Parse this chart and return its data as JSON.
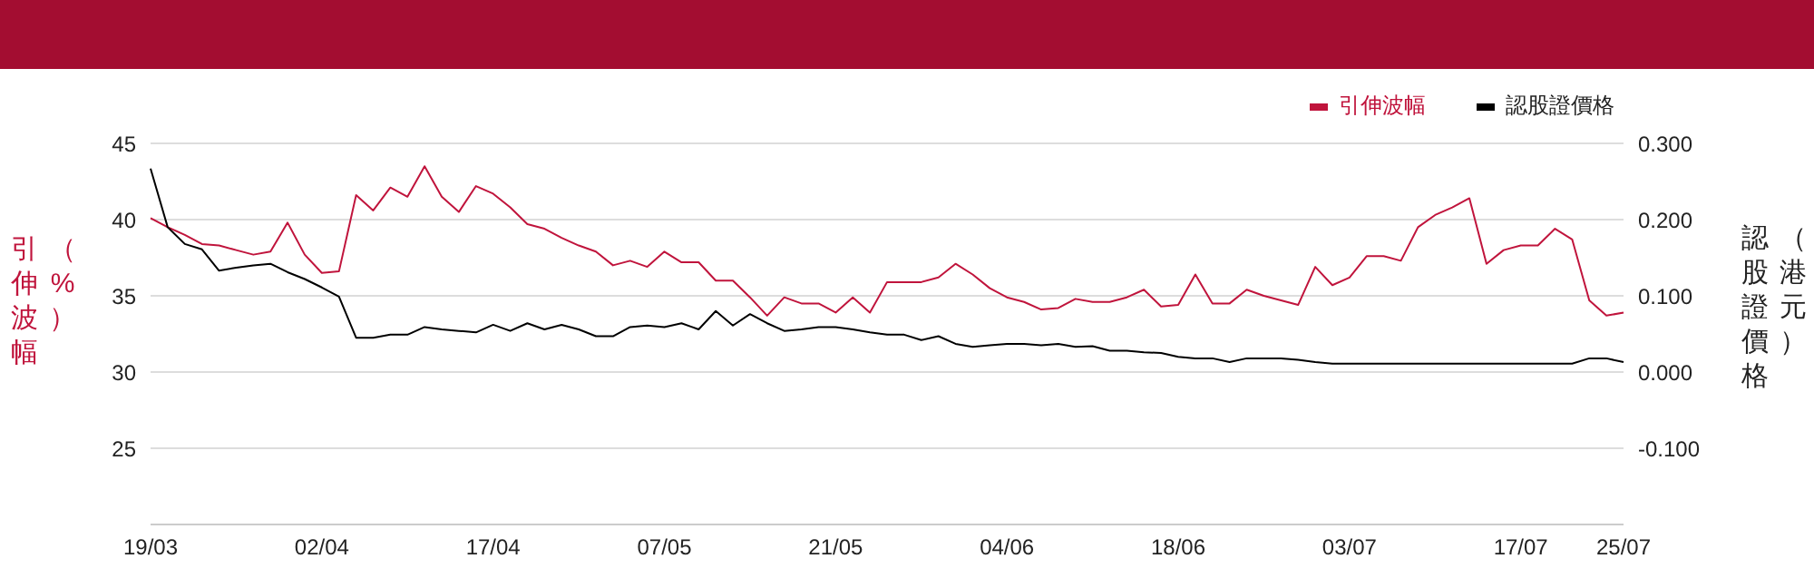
{
  "chart_data": {
    "type": "line",
    "ylabel": "引伸波幅（%）",
    "y2label": "認股證價格（港元）",
    "categories": [
      "19/03",
      null,
      null,
      null,
      null,
      null,
      null,
      null,
      null,
      null,
      "02/04",
      null,
      null,
      null,
      null,
      null,
      null,
      null,
      null,
      null,
      "17/04",
      null,
      null,
      null,
      null,
      null,
      null,
      null,
      null,
      null,
      "07/05",
      null,
      null,
      null,
      null,
      null,
      null,
      null,
      null,
      null,
      "21/05",
      null,
      null,
      null,
      null,
      null,
      null,
      null,
      null,
      null,
      "04/06",
      null,
      null,
      null,
      null,
      null,
      null,
      null,
      null,
      null,
      "18/06",
      null,
      null,
      null,
      null,
      null,
      null,
      null,
      null,
      null,
      "03/07",
      null,
      null,
      null,
      null,
      null,
      null,
      null,
      null,
      null,
      "17/07",
      null,
      null,
      null,
      null,
      null,
      "25/07"
    ],
    "series": [
      {
        "name": "引伸波幅",
        "color": "#c0143c",
        "values": [
          40.1,
          39.5,
          39.0,
          38.4,
          38.3,
          38.0,
          37.7,
          37.9,
          39.8,
          37.7,
          36.5,
          36.6,
          41.6,
          40.6,
          42.1,
          41.5,
          43.5,
          41.5,
          40.5,
          42.2,
          41.7,
          40.8,
          39.7,
          39.4,
          38.8,
          38.3,
          37.9,
          37.0,
          37.3,
          36.9,
          37.9,
          37.2,
          37.2,
          36.0,
          36.0,
          34.9,
          33.7,
          34.9,
          34.5,
          34.5,
          33.9,
          34.9,
          33.9,
          35.9,
          35.9,
          35.9,
          36.2,
          37.1,
          36.4,
          35.5,
          34.9,
          34.6,
          34.1,
          34.2,
          34.8,
          34.6,
          34.6,
          34.9,
          35.4,
          34.3,
          34.4,
          36.4,
          34.5,
          34.5,
          35.4,
          35.0,
          34.7,
          34.4,
          36.9,
          35.7,
          36.2,
          37.6,
          37.6,
          37.3,
          39.5,
          40.3,
          40.8,
          41.4,
          37.1,
          38.0,
          38.3,
          38.3,
          39.4,
          38.7,
          34.7,
          33.7,
          33.9
        ]
      },
      {
        "name": "認股證價格",
        "color": "#000000",
        "axis": "y2",
        "values": [
          0.267,
          0.19,
          0.168,
          0.161,
          0.133,
          0.137,
          0.14,
          0.142,
          0.131,
          0.122,
          0.111,
          0.099,
          0.045,
          0.045,
          0.049,
          0.049,
          0.059,
          0.056,
          0.054,
          0.052,
          0.062,
          0.054,
          0.064,
          0.056,
          0.062,
          0.056,
          0.047,
          0.047,
          0.059,
          0.061,
          0.059,
          0.064,
          0.056,
          0.08,
          0.061,
          0.076,
          0.064,
          0.054,
          0.056,
          0.059,
          0.059,
          0.056,
          0.052,
          0.049,
          0.049,
          0.042,
          0.047,
          0.037,
          0.033,
          0.035,
          0.037,
          0.037,
          0.035,
          0.037,
          0.033,
          0.034,
          0.028,
          0.028,
          0.026,
          0.025,
          0.02,
          0.018,
          0.018,
          0.013,
          0.018,
          0.018,
          0.018,
          0.016,
          0.013,
          0.011,
          0.011,
          0.011,
          0.011,
          0.011,
          0.011,
          0.011,
          0.011,
          0.011,
          0.011,
          0.011,
          0.011,
          0.011,
          0.011,
          0.011,
          0.018,
          0.018,
          0.013
        ]
      }
    ],
    "ylim": [
      20,
      45
    ],
    "yticks": [
      25,
      30,
      35,
      40,
      45
    ],
    "y2lim": [
      -0.2,
      0.3
    ],
    "y2ticks": [
      {
        "value": -0.1,
        "label": "-0.100"
      },
      {
        "value": 0,
        "label": "0.000"
      },
      {
        "value": 0.1,
        "label": "0.100"
      },
      {
        "value": 0.2,
        "label": "0.200"
      },
      {
        "value": 0.3,
        "label": "0.300"
      }
    ],
    "grid": "y",
    "legend": "top right",
    "marker": "none",
    "line_style": "solid"
  }
}
